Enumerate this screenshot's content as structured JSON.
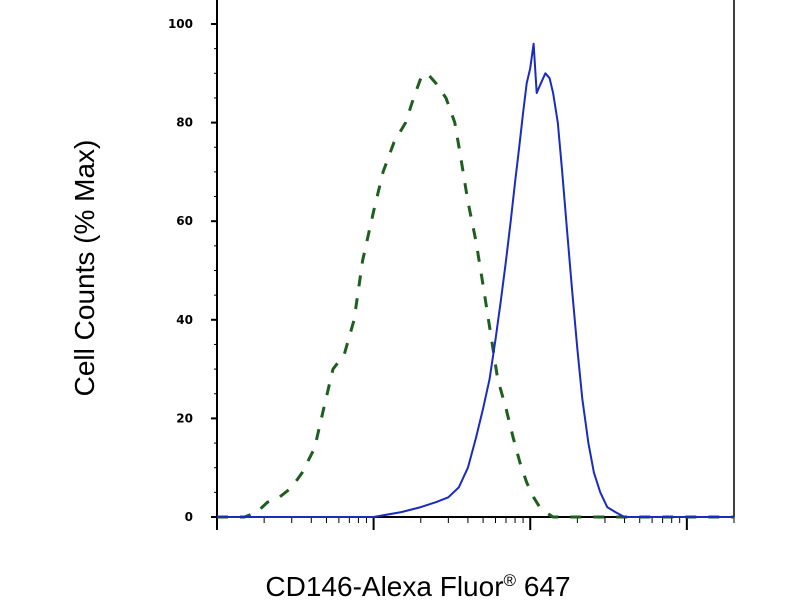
{
  "chart_data": {
    "type": "line",
    "title": "",
    "xlabel": "CD146-Alexa Fluor",
    "xlabel_superscript": "®",
    "xlabel_suffix": " 647",
    "ylabel": "Cell Counts (% Max)",
    "xscale": "log",
    "xlim": [
      1,
      2000
    ],
    "ylim": [
      0,
      100
    ],
    "yticks": [
      0,
      20,
      40,
      60,
      80,
      100
    ],
    "ytick_labels": [
      "0",
      "20",
      "40",
      "60",
      "80",
      "100"
    ],
    "xmajor_ticks": [
      1,
      10,
      100,
      1000
    ],
    "x_tick_labels_shown": false,
    "grid": false,
    "legend": "none",
    "series": [
      {
        "style": "dashed",
        "color": "#1e5e1e",
        "points": [
          [
            1,
            0
          ],
          [
            1.5,
            0
          ],
          [
            1.8,
            1
          ],
          [
            2.1,
            3
          ],
          [
            2.5,
            4
          ],
          [
            3,
            6
          ],
          [
            3.5,
            9
          ],
          [
            4.2,
            14
          ],
          [
            4.8,
            22
          ],
          [
            5.5,
            30
          ],
          [
            6.5,
            33
          ],
          [
            7.5,
            40
          ],
          [
            8.5,
            52
          ],
          [
            10,
            62
          ],
          [
            11.5,
            70
          ],
          [
            13.5,
            76
          ],
          [
            16,
            80
          ],
          [
            18,
            85
          ],
          [
            20,
            89
          ],
          [
            22,
            90
          ],
          [
            25,
            88
          ],
          [
            29,
            85
          ],
          [
            33,
            80
          ],
          [
            36,
            73
          ],
          [
            40,
            64
          ],
          [
            45,
            56
          ],
          [
            50,
            47
          ],
          [
            56,
            37
          ],
          [
            62,
            28
          ],
          [
            70,
            22
          ],
          [
            78,
            16
          ],
          [
            86,
            11
          ],
          [
            95,
            7
          ],
          [
            105,
            4
          ],
          [
            115,
            2
          ],
          [
            125,
            1
          ],
          [
            140,
            0
          ],
          [
            2000,
            0
          ]
        ]
      },
      {
        "style": "solid",
        "color": "#1a2bbf",
        "points": [
          [
            1,
            0
          ],
          [
            10,
            0
          ],
          [
            15,
            1
          ],
          [
            20,
            2
          ],
          [
            25,
            3
          ],
          [
            30,
            4
          ],
          [
            35,
            6
          ],
          [
            40,
            10
          ],
          [
            45,
            16
          ],
          [
            50,
            22
          ],
          [
            55,
            28
          ],
          [
            60,
            36
          ],
          [
            65,
            44
          ],
          [
            70,
            52
          ],
          [
            75,
            60
          ],
          [
            80,
            68
          ],
          [
            85,
            75
          ],
          [
            90,
            82
          ],
          [
            95,
            88
          ],
          [
            100,
            91
          ],
          [
            105,
            96
          ],
          [
            110,
            86
          ],
          [
            117,
            88
          ],
          [
            125,
            90
          ],
          [
            133,
            89
          ],
          [
            140,
            86
          ],
          [
            150,
            80
          ],
          [
            160,
            70
          ],
          [
            172,
            58
          ],
          [
            185,
            46
          ],
          [
            200,
            34
          ],
          [
            215,
            24
          ],
          [
            235,
            15
          ],
          [
            255,
            9
          ],
          [
            280,
            5
          ],
          [
            310,
            2
          ],
          [
            350,
            1
          ],
          [
            400,
            0
          ],
          [
            2000,
            0
          ]
        ]
      }
    ]
  }
}
